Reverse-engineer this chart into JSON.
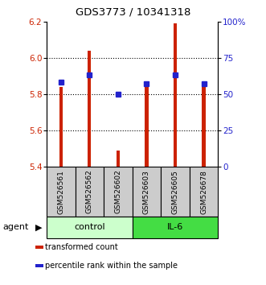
{
  "title": "GDS3773 / 10341318",
  "samples": [
    "GSM526561",
    "GSM526562",
    "GSM526602",
    "GSM526603",
    "GSM526605",
    "GSM526678"
  ],
  "groups": [
    "control",
    "control",
    "control",
    "IL-6",
    "IL-6",
    "IL-6"
  ],
  "red_values": [
    5.84,
    6.04,
    5.49,
    5.85,
    6.19,
    5.85
  ],
  "blue_values": [
    58,
    63,
    50,
    57,
    63,
    57
  ],
  "ylim_left": [
    5.4,
    6.2
  ],
  "ylim_right": [
    0,
    100
  ],
  "yticks_left": [
    5.4,
    5.6,
    5.8,
    6.0,
    6.2
  ],
  "yticks_right": [
    0,
    25,
    50,
    75,
    100
  ],
  "bar_color": "#cc2200",
  "dot_color": "#2222cc",
  "control_color": "#ccffcc",
  "il6_color": "#44dd44",
  "sample_bg_color": "#cccccc",
  "bar_bottom": 5.4,
  "bar_width": 0.12,
  "grid_yticks": [
    5.6,
    5.8,
    6.0
  ],
  "legend_items": [
    {
      "label": "transformed count",
      "color": "#cc2200"
    },
    {
      "label": "percentile rank within the sample",
      "color": "#2222cc"
    }
  ]
}
